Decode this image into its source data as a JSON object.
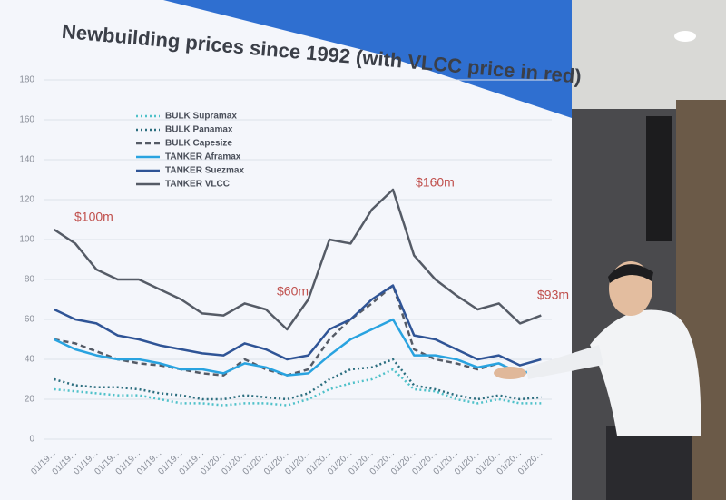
{
  "chart_data": {
    "type": "line",
    "title": "Newbuilding prices since 1992 (with VLCC price in red)",
    "categories": [
      "01/19...",
      "01/19...",
      "01/19...",
      "01/19...",
      "01/19...",
      "01/19...",
      "01/19...",
      "01/19...",
      "01/20...",
      "01/20...",
      "01/20...",
      "01/20...",
      "01/20...",
      "01/20...",
      "01/20...",
      "01/20...",
      "01/20...",
      "01/20...",
      "01/20...",
      "01/20...",
      "01/20...",
      "01/20...",
      "01/20...",
      "01/20..."
    ],
    "series": [
      {
        "name": "BULK Supramax",
        "color": "#4fc1c9",
        "style": "dotted",
        "values": [
          25,
          24,
          23,
          22,
          22,
          20,
          18,
          18,
          17,
          18,
          18,
          17,
          20,
          25,
          28,
          30,
          35,
          25,
          24,
          20,
          18,
          20,
          18,
          18
        ]
      },
      {
        "name": "BULK Panamax",
        "color": "#2c6e7f",
        "style": "dotted",
        "values": [
          30,
          27,
          26,
          26,
          25,
          23,
          22,
          20,
          20,
          22,
          21,
          20,
          23,
          30,
          35,
          36,
          40,
          27,
          25,
          22,
          20,
          22,
          20,
          21
        ]
      },
      {
        "name": "BULK Capesize",
        "color": "#555b66",
        "style": "dashed",
        "values": [
          50,
          48,
          44,
          40,
          38,
          37,
          35,
          33,
          32,
          40,
          35,
          32,
          35,
          50,
          60,
          68,
          77,
          45,
          40,
          38,
          35,
          38,
          33,
          35
        ]
      },
      {
        "name": "TANKER Aframax",
        "color": "#29a3e0",
        "style": "solid",
        "values": [
          50,
          45,
          42,
          40,
          40,
          38,
          35,
          35,
          33,
          38,
          36,
          32,
          33,
          42,
          50,
          55,
          60,
          42,
          42,
          40,
          36,
          38,
          33,
          35
        ]
      },
      {
        "name": "TANKER Suezmax",
        "color": "#2f5496",
        "style": "solid",
        "values": [
          65,
          60,
          58,
          52,
          50,
          47,
          45,
          43,
          42,
          48,
          45,
          40,
          42,
          55,
          60,
          70,
          77,
          52,
          50,
          45,
          40,
          42,
          37,
          40
        ]
      },
      {
        "name": "TANKER VLCC",
        "color": "#555b66",
        "style": "solid",
        "values": [
          105,
          98,
          85,
          80,
          80,
          75,
          70,
          63,
          62,
          68,
          65,
          55,
          70,
          100,
          98,
          115,
          125,
          92,
          80,
          72,
          65,
          68,
          58,
          62
        ]
      }
    ],
    "annotations": [
      "$100m",
      "$60m",
      "$160m",
      "$93m"
    ],
    "ylim": [
      0,
      180
    ],
    "yticks": [
      0,
      20,
      40,
      60,
      80,
      100,
      120,
      140,
      160,
      180
    ],
    "grid": true
  }
}
